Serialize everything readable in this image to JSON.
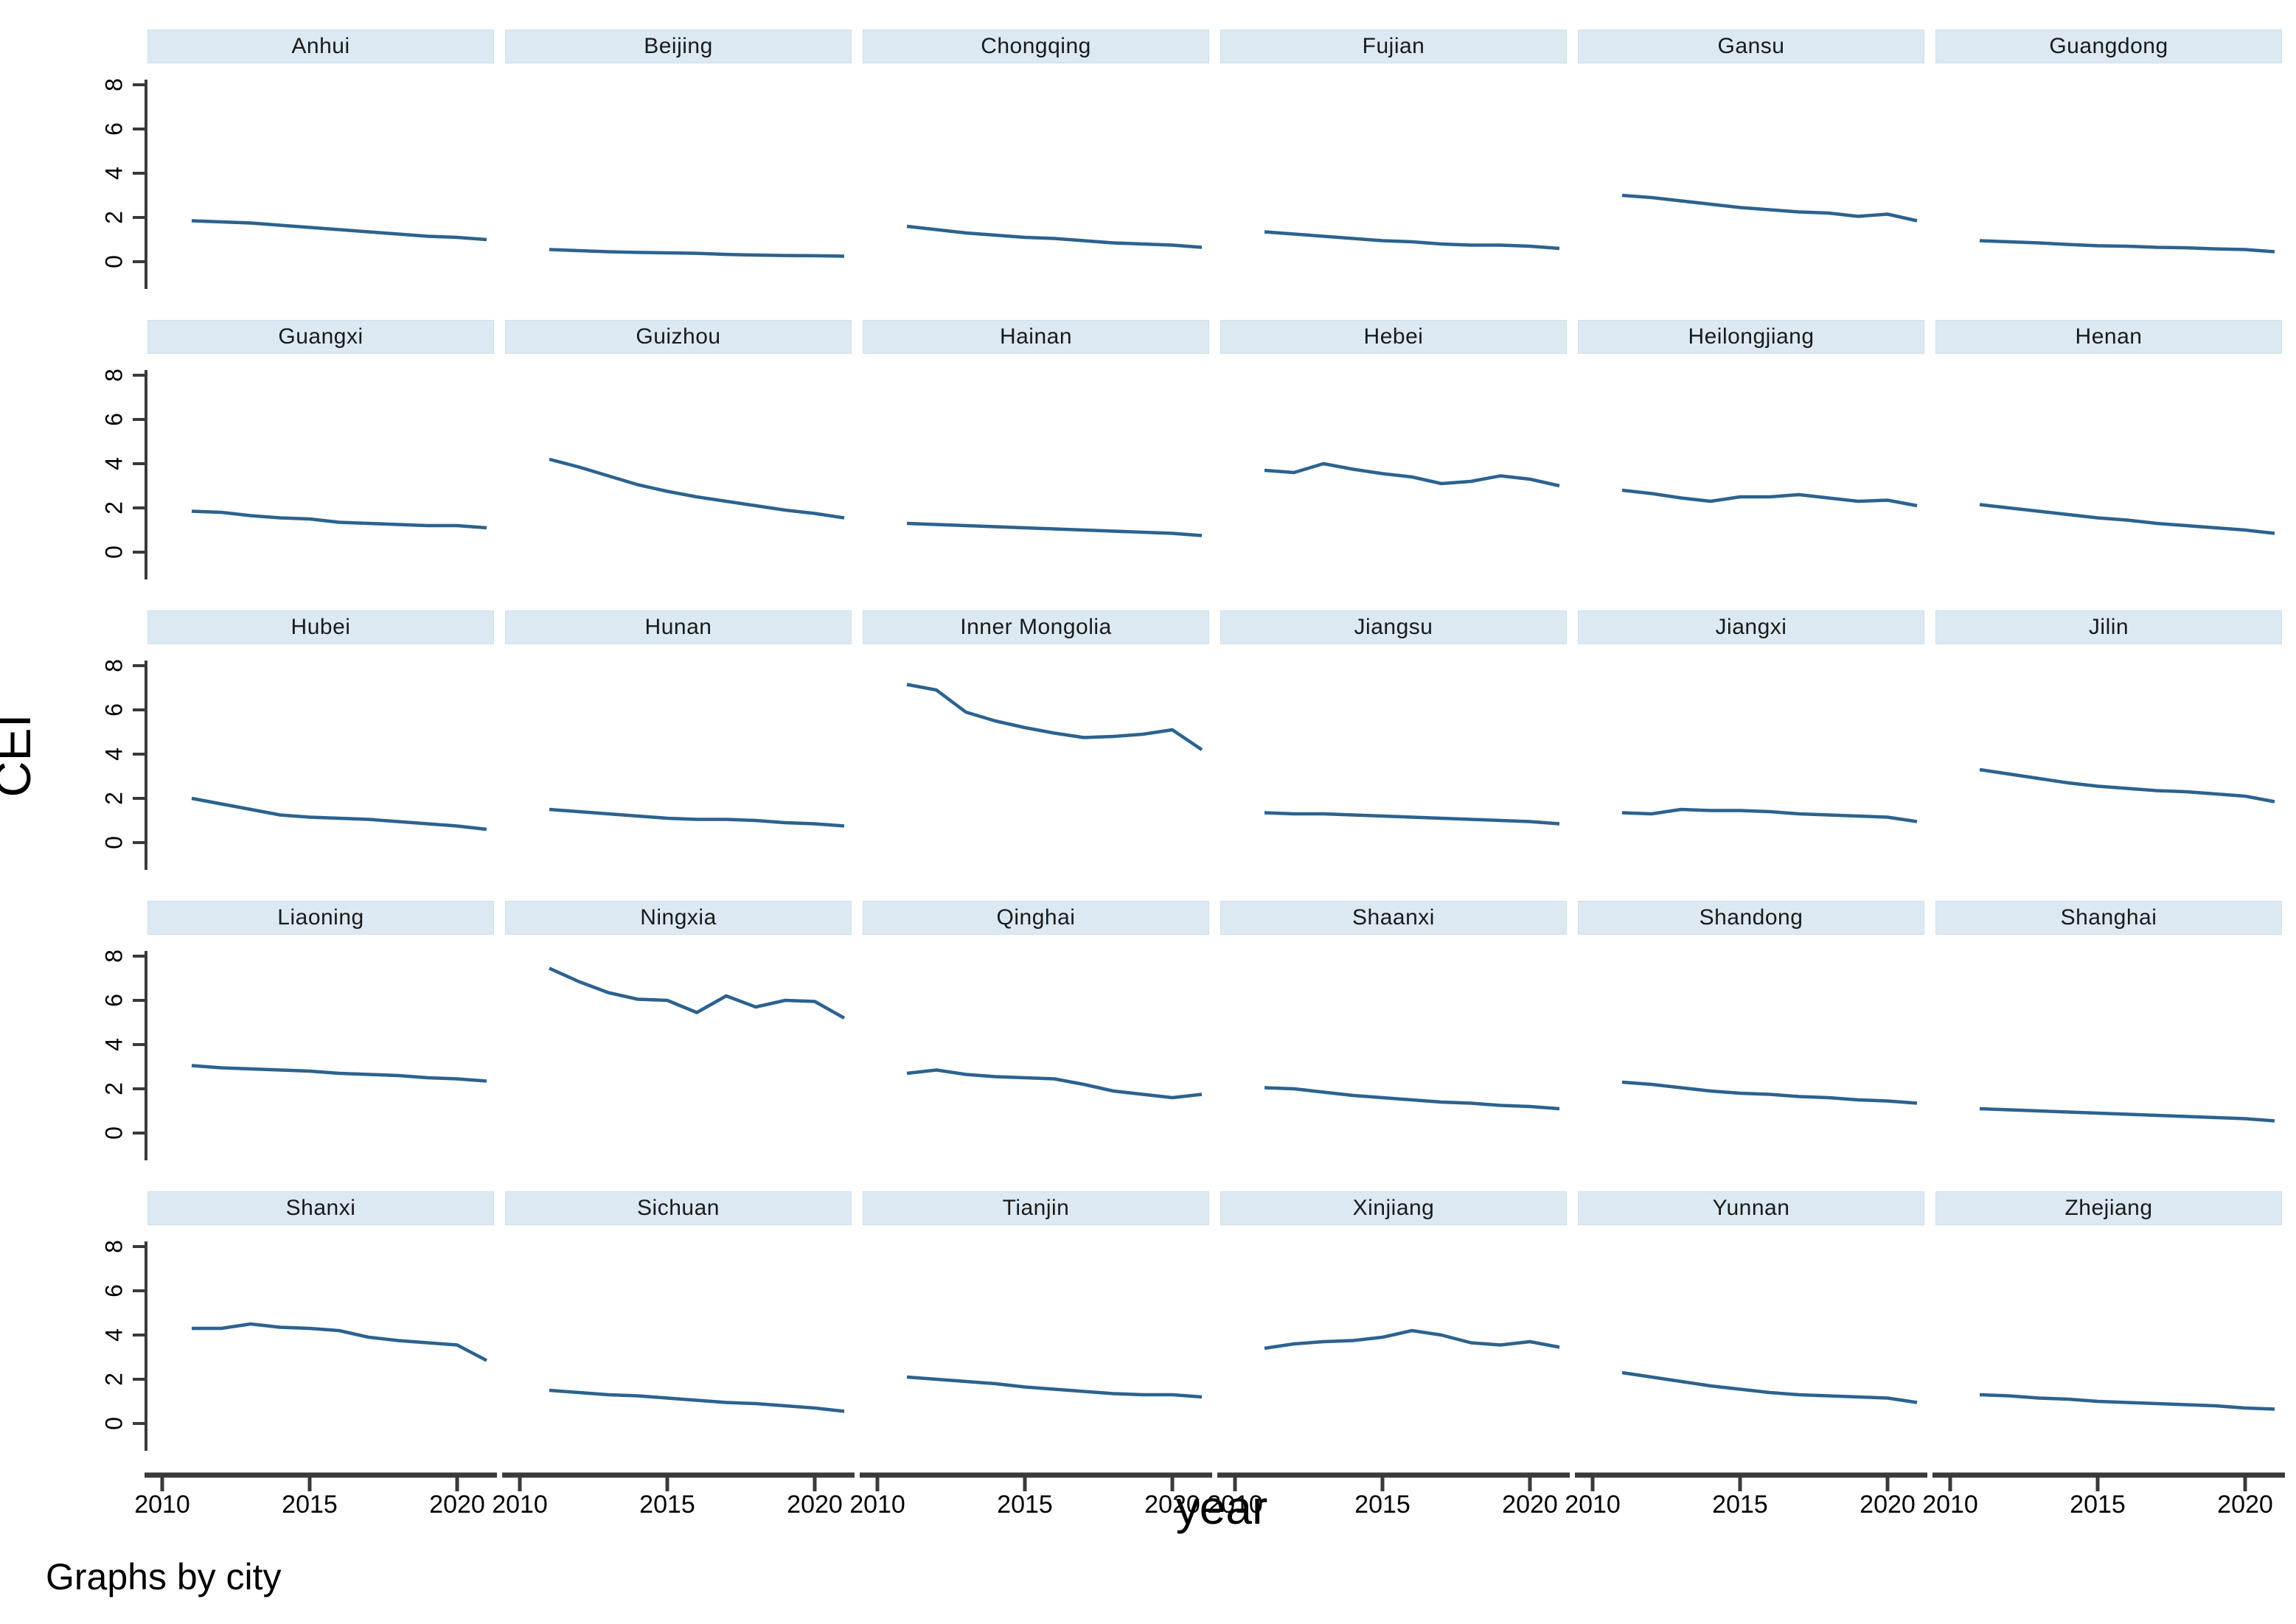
{
  "figure": {
    "ylabel": "CEI",
    "xlabel": "year",
    "note": "Graphs by city"
  },
  "axes": {
    "ytick_labels": [
      "8",
      "6",
      "4",
      "2",
      "0"
    ],
    "yticks": [
      8,
      6,
      4,
      2,
      0
    ],
    "xtick_labels": [
      "2010",
      "2015",
      "2020"
    ],
    "xticks": [
      2010,
      2015,
      2020
    ],
    "ylim": [
      0,
      8
    ],
    "xlim": [
      2010,
      2021.5
    ]
  },
  "colors": {
    "line": "#2c628f",
    "header_bg": "#dce9f2",
    "header_border": "#cfe0ea",
    "axis": "#3a3a3a",
    "text": "#000000"
  },
  "chart_data": {
    "type": "line",
    "title": "",
    "xlabel": "year",
    "ylabel": "CEI",
    "ylim": [
      0,
      8
    ],
    "grid": false,
    "legend_position": "none",
    "facet_note": "Graphs by city",
    "x": [
      2011,
      2012,
      2013,
      2014,
      2015,
      2016,
      2017,
      2018,
      2019,
      2020,
      2021
    ],
    "series": [
      {
        "name": "Anhui",
        "values": [
          1.85,
          1.8,
          1.75,
          1.65,
          1.55,
          1.45,
          1.35,
          1.25,
          1.15,
          1.1,
          1.0
        ]
      },
      {
        "name": "Beijing",
        "values": [
          0.55,
          0.5,
          0.45,
          0.42,
          0.4,
          0.38,
          0.33,
          0.3,
          0.28,
          0.27,
          0.25
        ]
      },
      {
        "name": "Chongqing",
        "values": [
          1.6,
          1.45,
          1.3,
          1.2,
          1.1,
          1.05,
          0.95,
          0.85,
          0.8,
          0.75,
          0.65
        ]
      },
      {
        "name": "Fujian",
        "values": [
          1.35,
          1.25,
          1.15,
          1.05,
          0.95,
          0.9,
          0.8,
          0.75,
          0.75,
          0.7,
          0.6
        ]
      },
      {
        "name": "Gansu",
        "values": [
          3.0,
          2.9,
          2.75,
          2.6,
          2.45,
          2.35,
          2.25,
          2.2,
          2.05,
          2.15,
          1.85
        ]
      },
      {
        "name": "Guangdong",
        "values": [
          0.95,
          0.9,
          0.85,
          0.78,
          0.72,
          0.7,
          0.65,
          0.63,
          0.58,
          0.55,
          0.45
        ]
      },
      {
        "name": "Guangxi",
        "values": [
          1.85,
          1.8,
          1.65,
          1.55,
          1.5,
          1.35,
          1.3,
          1.25,
          1.2,
          1.2,
          1.1
        ]
      },
      {
        "name": "Guizhou",
        "values": [
          4.2,
          3.85,
          3.45,
          3.05,
          2.75,
          2.5,
          2.3,
          2.1,
          1.9,
          1.75,
          1.55
        ]
      },
      {
        "name": "Hainan",
        "values": [
          1.3,
          1.25,
          1.2,
          1.15,
          1.1,
          1.05,
          1.0,
          0.95,
          0.9,
          0.85,
          0.75
        ]
      },
      {
        "name": "Hebei",
        "values": [
          3.7,
          3.6,
          4.0,
          3.75,
          3.55,
          3.4,
          3.1,
          3.2,
          3.45,
          3.3,
          3.0
        ]
      },
      {
        "name": "Heilongjiang",
        "values": [
          2.8,
          2.65,
          2.45,
          2.3,
          2.5,
          2.5,
          2.6,
          2.45,
          2.3,
          2.35,
          2.1
        ]
      },
      {
        "name": "Henan",
        "values": [
          2.15,
          2.0,
          1.85,
          1.7,
          1.55,
          1.45,
          1.3,
          1.2,
          1.1,
          1.0,
          0.85
        ]
      },
      {
        "name": "Hubei",
        "values": [
          2.0,
          1.75,
          1.5,
          1.25,
          1.15,
          1.1,
          1.05,
          0.95,
          0.85,
          0.75,
          0.6
        ]
      },
      {
        "name": "Hunan",
        "values": [
          1.5,
          1.4,
          1.3,
          1.2,
          1.1,
          1.05,
          1.05,
          1.0,
          0.9,
          0.85,
          0.75
        ]
      },
      {
        "name": "Inner Mongolia",
        "values": [
          7.15,
          6.9,
          5.9,
          5.5,
          5.2,
          4.95,
          4.75,
          4.8,
          4.9,
          5.1,
          4.2
        ]
      },
      {
        "name": "Jiangsu",
        "values": [
          1.35,
          1.3,
          1.3,
          1.25,
          1.2,
          1.15,
          1.1,
          1.05,
          1.0,
          0.95,
          0.85
        ]
      },
      {
        "name": "Jiangxi",
        "values": [
          1.35,
          1.3,
          1.5,
          1.45,
          1.45,
          1.4,
          1.3,
          1.25,
          1.2,
          1.15,
          0.95
        ]
      },
      {
        "name": "Jilin",
        "values": [
          3.3,
          3.1,
          2.9,
          2.7,
          2.55,
          2.45,
          2.35,
          2.3,
          2.2,
          2.1,
          1.85
        ]
      },
      {
        "name": "Liaoning",
        "values": [
          3.05,
          2.95,
          2.9,
          2.85,
          2.8,
          2.7,
          2.65,
          2.6,
          2.5,
          2.45,
          2.35
        ]
      },
      {
        "name": "Ningxia",
        "values": [
          7.45,
          6.85,
          6.35,
          6.05,
          6.0,
          5.45,
          6.2,
          5.7,
          6.0,
          5.95,
          5.2
        ]
      },
      {
        "name": "Qinghai",
        "values": [
          2.7,
          2.85,
          2.65,
          2.55,
          2.5,
          2.45,
          2.2,
          1.9,
          1.75,
          1.6,
          1.75
        ]
      },
      {
        "name": "Shaanxi",
        "values": [
          2.05,
          2.0,
          1.85,
          1.7,
          1.6,
          1.5,
          1.4,
          1.35,
          1.25,
          1.2,
          1.1
        ]
      },
      {
        "name": "Shandong",
        "values": [
          2.3,
          2.2,
          2.05,
          1.9,
          1.8,
          1.75,
          1.65,
          1.6,
          1.5,
          1.45,
          1.35
        ]
      },
      {
        "name": "Shanghai",
        "values": [
          1.1,
          1.05,
          1.0,
          0.95,
          0.9,
          0.85,
          0.8,
          0.75,
          0.7,
          0.65,
          0.55
        ]
      },
      {
        "name": "Shanxi",
        "values": [
          4.3,
          4.3,
          4.5,
          4.35,
          4.3,
          4.2,
          3.9,
          3.75,
          3.65,
          3.55,
          2.85
        ]
      },
      {
        "name": "Sichuan",
        "values": [
          1.5,
          1.4,
          1.3,
          1.25,
          1.15,
          1.05,
          0.95,
          0.9,
          0.8,
          0.7,
          0.55
        ]
      },
      {
        "name": "Tianjin",
        "values": [
          2.1,
          2.0,
          1.9,
          1.8,
          1.65,
          1.55,
          1.45,
          1.35,
          1.3,
          1.3,
          1.2
        ]
      },
      {
        "name": "Xinjiang",
        "values": [
          3.4,
          3.6,
          3.7,
          3.75,
          3.9,
          4.2,
          4.0,
          3.65,
          3.55,
          3.7,
          3.45
        ]
      },
      {
        "name": "Yunnan",
        "values": [
          2.3,
          2.1,
          1.9,
          1.7,
          1.55,
          1.4,
          1.3,
          1.25,
          1.2,
          1.15,
          0.95
        ]
      },
      {
        "name": "Zhejiang",
        "values": [
          1.3,
          1.25,
          1.15,
          1.1,
          1.0,
          0.95,
          0.9,
          0.85,
          0.8,
          0.7,
          0.65
        ]
      }
    ]
  }
}
